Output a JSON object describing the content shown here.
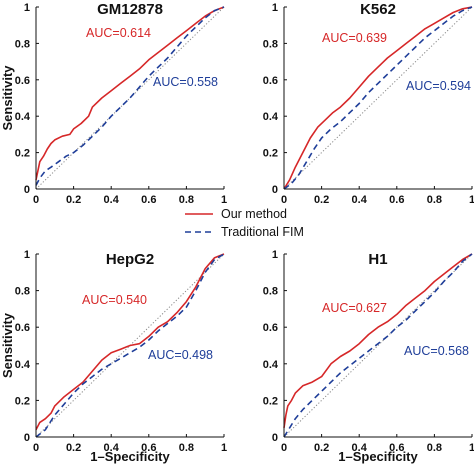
{
  "colors": {
    "our_method": "#d62728",
    "traditional": "#1f3e99",
    "diagonal": "#888888",
    "axis": "#111111"
  },
  "legend": {
    "items": [
      {
        "label": "Our method",
        "color": "#d62728",
        "style": "solid"
      },
      {
        "label": "Traditional FIM",
        "color": "#1f3e99",
        "style": "dashed"
      }
    ]
  },
  "chart_data": [
    {
      "type": "line",
      "title": "GM12878",
      "xlabel": "",
      "ylabel": "Sensitivity",
      "xlim": [
        0,
        1
      ],
      "ylim": [
        0,
        1
      ],
      "xticks": [
        "0",
        "0.2",
        "0.4",
        "0.6",
        "0.8",
        "1"
      ],
      "yticks": [
        "0",
        "0.2",
        "0.4",
        "0.6",
        "0.8",
        "1"
      ],
      "annotations": [
        {
          "text": "AUC=0.614",
          "series": 0
        },
        {
          "text": "AUC=0.558",
          "series": 1
        }
      ],
      "series": [
        {
          "name": "Our method",
          "x": [
            0,
            0.01,
            0.02,
            0.04,
            0.06,
            0.08,
            0.1,
            0.14,
            0.18,
            0.2,
            0.24,
            0.28,
            0.3,
            0.35,
            0.4,
            0.45,
            0.5,
            0.55,
            0.6,
            0.65,
            0.7,
            0.75,
            0.8,
            0.85,
            0.9,
            0.95,
            1
          ],
          "y": [
            0.05,
            0.1,
            0.15,
            0.18,
            0.22,
            0.25,
            0.27,
            0.29,
            0.3,
            0.33,
            0.36,
            0.4,
            0.45,
            0.5,
            0.54,
            0.58,
            0.62,
            0.66,
            0.71,
            0.75,
            0.79,
            0.83,
            0.87,
            0.91,
            0.95,
            0.98,
            1
          ]
        },
        {
          "name": "Traditional FIM",
          "x": [
            0,
            0.02,
            0.05,
            0.08,
            0.12,
            0.16,
            0.2,
            0.25,
            0.3,
            0.35,
            0.4,
            0.45,
            0.5,
            0.55,
            0.6,
            0.65,
            0.7,
            0.75,
            0.8,
            0.85,
            0.9,
            0.95,
            1
          ],
          "y": [
            0.02,
            0.06,
            0.1,
            0.12,
            0.15,
            0.18,
            0.2,
            0.24,
            0.29,
            0.34,
            0.4,
            0.45,
            0.5,
            0.56,
            0.62,
            0.67,
            0.72,
            0.78,
            0.84,
            0.89,
            0.94,
            0.98,
            1
          ]
        }
      ]
    },
    {
      "type": "line",
      "title": "K562",
      "xlabel": "",
      "ylabel": "",
      "xlim": [
        0,
        1
      ],
      "ylim": [
        0,
        1
      ],
      "xticks": [
        "0",
        "0.2",
        "0.4",
        "0.6",
        "0.8",
        "1"
      ],
      "yticks": [
        "0",
        "0.2",
        "0.4",
        "0.6",
        "0.8",
        "1"
      ],
      "annotations": [
        {
          "text": "AUC=0.639",
          "series": 0
        },
        {
          "text": "AUC=0.594",
          "series": 1
        }
      ],
      "series": [
        {
          "name": "Our method",
          "x": [
            0,
            0.03,
            0.06,
            0.1,
            0.14,
            0.18,
            0.22,
            0.26,
            0.3,
            0.35,
            0.4,
            0.45,
            0.5,
            0.55,
            0.6,
            0.65,
            0.7,
            0.75,
            0.8,
            0.85,
            0.9,
            0.95,
            1
          ],
          "y": [
            0,
            0.05,
            0.12,
            0.2,
            0.28,
            0.34,
            0.38,
            0.42,
            0.45,
            0.5,
            0.56,
            0.62,
            0.67,
            0.72,
            0.76,
            0.8,
            0.84,
            0.88,
            0.91,
            0.94,
            0.97,
            0.99,
            1
          ]
        },
        {
          "name": "Traditional FIM",
          "x": [
            0,
            0.04,
            0.08,
            0.12,
            0.16,
            0.2,
            0.25,
            0.3,
            0.35,
            0.4,
            0.45,
            0.5,
            0.55,
            0.6,
            0.65,
            0.7,
            0.75,
            0.8,
            0.85,
            0.9,
            0.95,
            1
          ],
          "y": [
            0,
            0.03,
            0.08,
            0.15,
            0.22,
            0.28,
            0.33,
            0.37,
            0.42,
            0.47,
            0.53,
            0.58,
            0.63,
            0.68,
            0.73,
            0.78,
            0.83,
            0.87,
            0.91,
            0.95,
            0.98,
            1
          ]
        }
      ]
    },
    {
      "type": "line",
      "title": "HepG2",
      "xlabel": "1–Specificity",
      "ylabel": "Sensitivity",
      "xlim": [
        0,
        1
      ],
      "ylim": [
        0,
        1
      ],
      "xticks": [
        "0",
        "0.2",
        "0.4",
        "0.6",
        "0.8",
        "1"
      ],
      "yticks": [
        "0",
        "0.2",
        "0.4",
        "0.6",
        "0.8",
        "1"
      ],
      "annotations": [
        {
          "text": "AUC=0.540",
          "series": 0
        },
        {
          "text": "AUC=0.498",
          "series": 1
        }
      ],
      "series": [
        {
          "name": "Our method",
          "x": [
            0,
            0.02,
            0.05,
            0.08,
            0.1,
            0.15,
            0.2,
            0.25,
            0.3,
            0.35,
            0.4,
            0.45,
            0.5,
            0.55,
            0.6,
            0.65,
            0.7,
            0.75,
            0.8,
            0.85,
            0.9,
            0.95,
            1
          ],
          "y": [
            0.04,
            0.08,
            0.1,
            0.13,
            0.17,
            0.22,
            0.26,
            0.3,
            0.36,
            0.42,
            0.46,
            0.48,
            0.5,
            0.51,
            0.55,
            0.6,
            0.63,
            0.68,
            0.74,
            0.82,
            0.92,
            0.98,
            1
          ]
        },
        {
          "name": "Traditional FIM",
          "x": [
            0,
            0.05,
            0.1,
            0.15,
            0.2,
            0.25,
            0.3,
            0.35,
            0.4,
            0.45,
            0.5,
            0.55,
            0.6,
            0.65,
            0.7,
            0.75,
            0.8,
            0.85,
            0.9,
            0.95,
            1
          ],
          "y": [
            0,
            0.04,
            0.12,
            0.18,
            0.24,
            0.29,
            0.33,
            0.37,
            0.4,
            0.43,
            0.46,
            0.49,
            0.53,
            0.58,
            0.62,
            0.66,
            0.71,
            0.8,
            0.9,
            0.97,
            1
          ]
        }
      ]
    },
    {
      "type": "line",
      "title": "H1",
      "xlabel": "1–Specificity",
      "ylabel": "",
      "xlim": [
        0,
        1
      ],
      "ylim": [
        0,
        1
      ],
      "xticks": [
        "0",
        "0.2",
        "0.4",
        "0.6",
        "0.8",
        "1"
      ],
      "yticks": [
        "0",
        "0.2",
        "0.4",
        "0.6",
        "0.8",
        "1"
      ],
      "annotations": [
        {
          "text": "AUC=0.627",
          "series": 0
        },
        {
          "text": "AUC=0.568",
          "series": 1
        }
      ],
      "series": [
        {
          "name": "Our method",
          "x": [
            0,
            0.01,
            0.02,
            0.04,
            0.06,
            0.1,
            0.15,
            0.2,
            0.25,
            0.3,
            0.35,
            0.4,
            0.45,
            0.5,
            0.55,
            0.6,
            0.65,
            0.7,
            0.75,
            0.8,
            0.85,
            0.9,
            0.95,
            1
          ],
          "y": [
            0.05,
            0.12,
            0.17,
            0.2,
            0.24,
            0.28,
            0.3,
            0.33,
            0.4,
            0.44,
            0.47,
            0.51,
            0.56,
            0.6,
            0.63,
            0.67,
            0.72,
            0.76,
            0.8,
            0.85,
            0.89,
            0.93,
            0.97,
            1
          ]
        },
        {
          "name": "Traditional FIM",
          "x": [
            0,
            0.03,
            0.06,
            0.1,
            0.15,
            0.2,
            0.25,
            0.3,
            0.35,
            0.4,
            0.45,
            0.5,
            0.55,
            0.6,
            0.65,
            0.7,
            0.75,
            0.8,
            0.85,
            0.9,
            0.95,
            1
          ],
          "y": [
            0,
            0.05,
            0.1,
            0.15,
            0.2,
            0.25,
            0.3,
            0.35,
            0.39,
            0.43,
            0.47,
            0.51,
            0.55,
            0.6,
            0.64,
            0.69,
            0.74,
            0.79,
            0.85,
            0.9,
            0.96,
            1
          ]
        }
      ]
    }
  ]
}
